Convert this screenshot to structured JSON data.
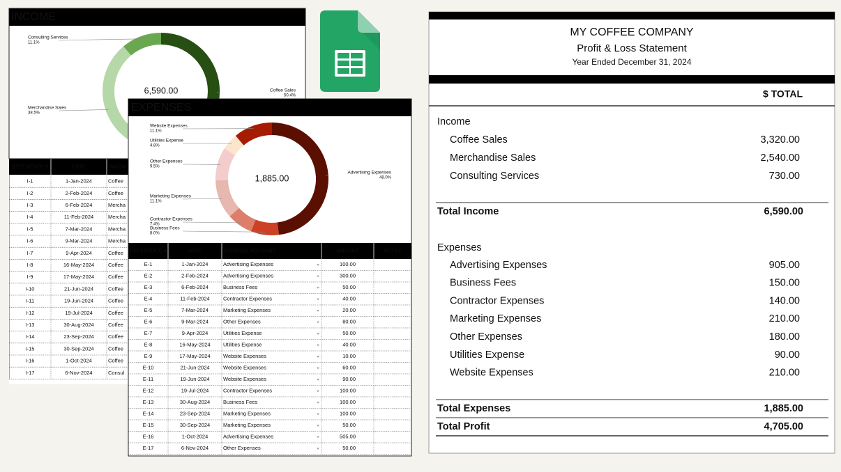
{
  "income": {
    "title": "INCOME",
    "donut": {
      "type": "pie",
      "center_label": "6,590.00",
      "categories": [
        "Coffee Sales",
        "Merchandise Sales",
        "Consulting Services"
      ],
      "values": [
        50.4,
        38.5,
        11.1
      ],
      "value_labels": [
        "50.4%",
        "38.5%",
        "11.1%"
      ],
      "colors": [
        "#274e13",
        "#b6d7a8",
        "#6aa84f"
      ]
    },
    "table": {
      "headers": [
        "REFERENCE #",
        "DATE",
        "INCOM"
      ],
      "rows": [
        [
          "I-1",
          "1-Jan-2024",
          "Coffee"
        ],
        [
          "I-2",
          "2-Feb-2024",
          "Coffee"
        ],
        [
          "I-3",
          "6-Feb-2024",
          "Mercha"
        ],
        [
          "I-4",
          "11-Feb-2024",
          "Mercha"
        ],
        [
          "I-5",
          "7-Mar-2024",
          "Mercha"
        ],
        [
          "I-6",
          "9-Mar-2024",
          "Mercha"
        ],
        [
          "I-7",
          "9-Apr-2024",
          "Coffee"
        ],
        [
          "I-8",
          "16-May-2024",
          "Coffee"
        ],
        [
          "I-9",
          "17-May-2024",
          "Coffee"
        ],
        [
          "I-10",
          "21-Jun-2024",
          "Coffee"
        ],
        [
          "I-11",
          "19-Jun-2024",
          "Coffee"
        ],
        [
          "I-12",
          "19-Jul-2024",
          "Coffee"
        ],
        [
          "I-13",
          "30-Aug-2024",
          "Coffee"
        ],
        [
          "I-14",
          "23-Sep-2024",
          "Coffee"
        ],
        [
          "I-15",
          "30-Sep-2024",
          "Coffee"
        ],
        [
          "I-16",
          "1-Oct-2024",
          "Coffee"
        ],
        [
          "I-17",
          "6-Nov-2024",
          "Consul"
        ]
      ]
    }
  },
  "expenses": {
    "title": "EXPENSES",
    "donut": {
      "type": "pie",
      "center_label": "1,885.00",
      "categories": [
        "Advertising Expenses",
        "Business Fees",
        "Contractor Expenses",
        "Marketing Expenses",
        "Other Expenses",
        "Utilities Expense",
        "Website Expenses"
      ],
      "values": [
        48.0,
        8.0,
        7.4,
        11.1,
        9.5,
        4.8,
        11.1
      ],
      "value_labels": [
        "48.0%",
        "8.0%",
        "7.4%",
        "11.1%",
        "9.5%",
        "4.8%",
        "11.1%"
      ],
      "colors": [
        "#5b0f00",
        "#cc4125",
        "#dd7e6b",
        "#e6b8af",
        "#f4cccc",
        "#fce5cd",
        "#a61c00"
      ]
    },
    "table": {
      "headers": [
        "REFERENCE #",
        "DATE",
        "EXPENSE ACCOUNT",
        "AMOUNT",
        "NOTES"
      ],
      "rows": [
        [
          "E-1",
          "1-Jan-2024",
          "Advertising Expenses",
          "100.00"
        ],
        [
          "E-2",
          "2-Feb-2024",
          "Advertising Expenses",
          "300.00"
        ],
        [
          "E-3",
          "6-Feb-2024",
          "Business Fees",
          "50.00"
        ],
        [
          "E-4",
          "11-Feb-2024",
          "Contractor Expenses",
          "40.00"
        ],
        [
          "E-5",
          "7-Mar-2024",
          "Marketing Expenses",
          "20.00"
        ],
        [
          "E-6",
          "9-Mar-2024",
          "Other Expenses",
          "80.00"
        ],
        [
          "E-7",
          "9-Apr-2024",
          "Utilities Expense",
          "50.00"
        ],
        [
          "E-8",
          "16-May-2024",
          "Utilities Expense",
          "40.00"
        ],
        [
          "E-9",
          "17-May-2024",
          "Website Expenses",
          "10.00"
        ],
        [
          "E-10",
          "21-Jun-2024",
          "Website Expenses",
          "60.00"
        ],
        [
          "E-11",
          "19-Jun-2024",
          "Website Expenses",
          "90.00"
        ],
        [
          "E-12",
          "19-Jul-2024",
          "Contractor Expenses",
          "100.00"
        ],
        [
          "E-13",
          "30-Aug-2024",
          "Business Fees",
          "100.00"
        ],
        [
          "E-14",
          "23-Sep-2024",
          "Marketing Expenses",
          "100.00"
        ],
        [
          "E-15",
          "30-Sep-2024",
          "Marketing Expenses",
          "50.00"
        ],
        [
          "E-16",
          "1-Oct-2024",
          "Advertising Expenses",
          "505.00"
        ],
        [
          "E-17",
          "6-Nov-2024",
          "Other Expenses",
          "50.00"
        ]
      ]
    }
  },
  "statement": {
    "company": "MY COFFEE COMPANY",
    "subtitle": "Profit & Loss Statement",
    "period": "Year Ended December 31, 2024",
    "column": "$ TOTAL",
    "income_label": "Income",
    "income": [
      {
        "name": "Coffee Sales",
        "amount": "3,320.00"
      },
      {
        "name": "Merchandise Sales",
        "amount": "2,540.00"
      },
      {
        "name": "Consulting Services",
        "amount": "730.00"
      }
    ],
    "total_income": {
      "label": "Total Income",
      "amount": "6,590.00"
    },
    "expenses_label": "Expenses",
    "expenses": [
      {
        "name": "Advertising Expenses",
        "amount": "905.00"
      },
      {
        "name": "Business Fees",
        "amount": "150.00"
      },
      {
        "name": "Contractor Expenses",
        "amount": "140.00"
      },
      {
        "name": "Marketing Expenses",
        "amount": "210.00"
      },
      {
        "name": "Other Expenses",
        "amount": "180.00"
      },
      {
        "name": "Utilities Expense",
        "amount": "90.00"
      },
      {
        "name": "Website Expenses",
        "amount": "210.00"
      }
    ],
    "total_expenses": {
      "label": "Total Expenses",
      "amount": "1,885.00"
    },
    "total_profit": {
      "label": "Total Profit",
      "amount": "4,705.00"
    }
  }
}
